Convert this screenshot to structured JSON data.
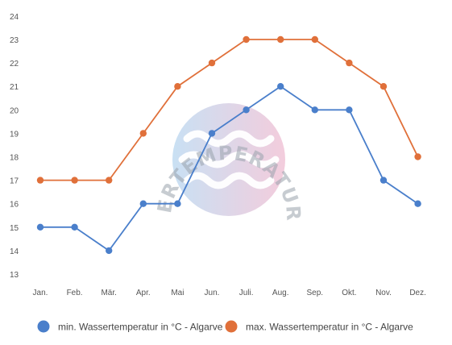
{
  "chart_data": {
    "type": "line",
    "title": "",
    "xlabel": "",
    "ylabel": "",
    "categories": [
      "Jan.",
      "Feb.",
      "Mär.",
      "Apr.",
      "Mai",
      "Jun.",
      "Juli.",
      "Aug.",
      "Sep.",
      "Okt.",
      "Nov.",
      "Dez."
    ],
    "yticks": [
      13,
      14,
      15,
      16,
      17,
      18,
      19,
      20,
      21,
      22,
      23,
      24
    ],
    "ylim": [
      13,
      24
    ],
    "grid": false,
    "legend_position": "bottom",
    "series": [
      {
        "name": "min. Wassertemperatur in °C - Algarve",
        "color": "#4a7fcb",
        "values": [
          15,
          15,
          14,
          16,
          16,
          19,
          20,
          21,
          20,
          20,
          17,
          16
        ]
      },
      {
        "name": "max. Wassertemperatur in °C - Algarve",
        "color": "#e0703a",
        "values": [
          17,
          17,
          17,
          19,
          21,
          22,
          23,
          23,
          23,
          22,
          21,
          18
        ]
      }
    ]
  },
  "watermark": {
    "text": "WASSERTEMPERATUR.ORG"
  }
}
